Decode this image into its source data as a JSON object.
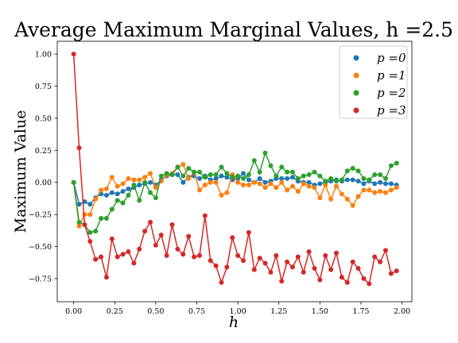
{
  "chart_data": {
    "type": "line",
    "title": "Average Maximum Marginal Values, h =2.5",
    "xlabel": "h",
    "ylabel": "Maximum Value",
    "xlim": [
      -0.1,
      2.06
    ],
    "ylim": [
      -0.93,
      1.1
    ],
    "x_ticks": [
      0.0,
      0.25,
      0.5,
      0.75,
      1.0,
      1.25,
      1.5,
      1.75,
      2.0
    ],
    "x_tick_labels": [
      "0.00",
      "0.25",
      "0.50",
      "0.75",
      "1.00",
      "1.25",
      "1.50",
      "1.75",
      "2.00"
    ],
    "y_ticks": [
      1.0,
      0.75,
      0.5,
      0.25,
      0.0,
      -0.25,
      -0.5,
      -0.75
    ],
    "y_tick_labels": [
      "1.00",
      "0.75",
      "0.50",
      "0.25",
      "0.00",
      "−0.25",
      "−0.50",
      "−0.75"
    ],
    "grid": false,
    "legend_position": "top-right",
    "x": [
      0.0,
      0.0333,
      0.0667,
      0.1,
      0.1333,
      0.1667,
      0.2,
      0.2333,
      0.2667,
      0.3,
      0.3333,
      0.3667,
      0.4,
      0.4333,
      0.4667,
      0.5,
      0.5333,
      0.5667,
      0.6,
      0.6333,
      0.6667,
      0.7,
      0.7333,
      0.7667,
      0.8,
      0.8333,
      0.8667,
      0.9,
      0.9333,
      0.9667,
      1.0,
      1.0333,
      1.0667,
      1.1,
      1.1333,
      1.1667,
      1.2,
      1.2333,
      1.2667,
      1.3,
      1.3333,
      1.3667,
      1.4,
      1.4333,
      1.4667,
      1.5,
      1.5333,
      1.5667,
      1.6,
      1.6333,
      1.6667,
      1.7,
      1.7333,
      1.7667,
      1.8,
      1.8333,
      1.8667,
      1.9,
      1.9333,
      1.9667
    ],
    "series": [
      {
        "name": "p =0",
        "color": "#1f77b4",
        "values": [
          0.0,
          -0.17,
          -0.15,
          -0.17,
          -0.12,
          -0.09,
          -0.1,
          -0.08,
          -0.09,
          -0.07,
          -0.05,
          -0.04,
          -0.02,
          -0.01,
          0.0,
          -0.02,
          0.02,
          0.05,
          0.06,
          0.06,
          0.0,
          0.04,
          0.05,
          0.03,
          0.05,
          0.02,
          0.03,
          0.05,
          0.04,
          0.02,
          0.03,
          0.07,
          0.02,
          0.0,
          0.03,
          0.0,
          0.01,
          0.03,
          0.03,
          0.03,
          0.04,
          0.01,
          0.0,
          0.0,
          -0.02,
          -0.01,
          0.0,
          0.01,
          0.02,
          0.01,
          0.02,
          0.02,
          0.01,
          -0.01,
          0.01,
          -0.01,
          0.0,
          -0.01,
          -0.01,
          -0.02
        ]
      },
      {
        "name": "p =1",
        "color": "#ff7f0e",
        "values": [
          0.0,
          -0.34,
          -0.25,
          -0.25,
          -0.13,
          -0.06,
          -0.05,
          0.04,
          -0.03,
          -0.01,
          0.03,
          0.02,
          0.02,
          0.04,
          0.07,
          -0.04,
          0.01,
          0.06,
          0.07,
          0.12,
          0.14,
          0.03,
          0.08,
          -0.06,
          -0.02,
          0.0,
          0.0,
          -0.1,
          -0.08,
          0.06,
          0.0,
          -0.02,
          -0.02,
          0.0,
          -0.01,
          -0.04,
          -0.01,
          -0.04,
          0.0,
          -0.06,
          -0.03,
          -0.07,
          -0.01,
          -0.03,
          -0.04,
          -0.12,
          -0.02,
          -0.13,
          -0.03,
          -0.09,
          -0.13,
          -0.18,
          -0.11,
          -0.06,
          -0.06,
          -0.08,
          -0.07,
          -0.08,
          -0.06,
          -0.04
        ]
      },
      {
        "name": "p =2",
        "color": "#2ca02c",
        "values": [
          0.0,
          -0.31,
          -0.33,
          -0.39,
          -0.38,
          -0.28,
          -0.28,
          -0.21,
          -0.14,
          -0.16,
          -0.1,
          -0.02,
          -0.14,
          0.0,
          -0.08,
          -0.12,
          0.05,
          0.07,
          0.06,
          0.12,
          0.05,
          0.11,
          0.08,
          0.08,
          0.04,
          0.06,
          0.06,
          0.12,
          0.07,
          0.04,
          0.05,
          0.03,
          0.06,
          0.17,
          0.08,
          0.23,
          0.13,
          0.05,
          0.12,
          0.08,
          0.08,
          0.03,
          0.05,
          0.06,
          0.08,
          0.05,
          0.01,
          0.03,
          0.01,
          0.02,
          0.09,
          0.11,
          0.09,
          0.03,
          0.02,
          0.06,
          0.06,
          0.03,
          0.13,
          0.15
        ]
      },
      {
        "name": "p =3",
        "color": "#d62728",
        "values": [
          1.0,
          0.27,
          -0.33,
          -0.46,
          -0.6,
          -0.58,
          -0.74,
          -0.44,
          -0.58,
          -0.56,
          -0.54,
          -0.63,
          -0.52,
          -0.38,
          -0.31,
          -0.49,
          -0.41,
          -0.57,
          -0.33,
          -0.52,
          -0.56,
          -0.42,
          -0.58,
          -0.57,
          -0.26,
          -0.61,
          -0.65,
          -0.78,
          -0.66,
          -0.43,
          -0.57,
          -0.61,
          -0.39,
          -0.68,
          -0.59,
          -0.63,
          -0.7,
          -0.57,
          -0.77,
          -0.62,
          -0.66,
          -0.58,
          -0.7,
          -0.54,
          -0.67,
          -0.76,
          -0.57,
          -0.68,
          -0.55,
          -0.74,
          -0.78,
          -0.62,
          -0.67,
          -0.75,
          -0.79,
          -0.58,
          -0.62,
          -0.53,
          -0.71,
          -0.69
        ]
      }
    ]
  }
}
